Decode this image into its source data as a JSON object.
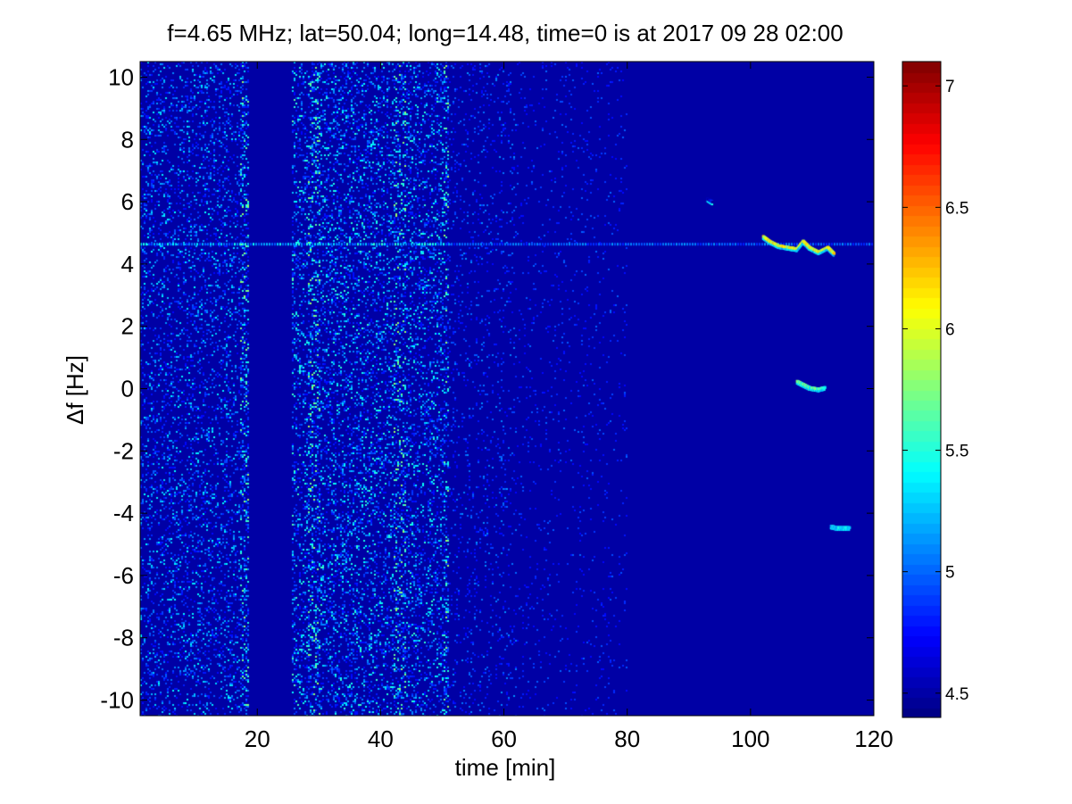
{
  "chart_data": {
    "type": "heatmap",
    "title": "f=4.65 MHz;  lat=50.04; long=14.48, time=0 is at 2017 09 28 02:00",
    "xlabel": "time [min]",
    "ylabel": "Δf [Hz]",
    "xlim": [
      1,
      120
    ],
    "ylim": [
      -10.5,
      10.5
    ],
    "x_ticks": [
      20,
      40,
      60,
      80,
      100,
      120
    ],
    "y_ticks": [
      -10,
      -8,
      -6,
      -4,
      -2,
      0,
      2,
      4,
      6,
      8,
      10
    ],
    "colormap": "jet",
    "colorbar": {
      "clim": [
        4.4,
        7.1
      ],
      "ticks": [
        4.5,
        5,
        5.5,
        6,
        6.5,
        7
      ],
      "labels": [
        "4.5",
        "5",
        "5.5",
        "6",
        "6.5",
        "7"
      ]
    },
    "background_value": 4.5,
    "noise_bands": [
      {
        "x_start": 1,
        "x_end": 17.5,
        "level": 0.55
      },
      {
        "x_start": 17,
        "x_end": 18.5,
        "level": 1.0
      },
      {
        "x_start": 18.5,
        "x_end": 25.5,
        "level": 0.0
      },
      {
        "x_start": 25.5,
        "x_end": 26,
        "level": 0.8
      },
      {
        "x_start": 26,
        "x_end": 51,
        "level": 0.7
      },
      {
        "x_start": 28,
        "x_end": 30,
        "level": 1.0
      },
      {
        "x_start": 42,
        "x_end": 44,
        "level": 1.0
      },
      {
        "x_start": 50,
        "x_end": 51,
        "level": 1.0
      },
      {
        "x_start": 51,
        "x_end": 62,
        "level": 0.25
      },
      {
        "x_start": 62,
        "x_end": 80,
        "level": 0.12
      }
    ],
    "carrier_line": {
      "y": 4.65,
      "x_start": 1,
      "x_end": 120
    },
    "signal_traces": [
      {
        "points": [
          [
            102.0,
            4.9
          ],
          [
            103.0,
            4.75
          ],
          [
            104.5,
            4.6
          ],
          [
            106.0,
            4.55
          ],
          [
            107.5,
            4.5
          ],
          [
            108.5,
            4.75
          ],
          [
            109.5,
            4.55
          ],
          [
            111.0,
            4.4
          ],
          [
            112.5,
            4.55
          ],
          [
            113.5,
            4.35
          ]
        ],
        "peak": 6.3
      },
      {
        "points": [
          [
            107.5,
            0.25
          ],
          [
            108.5,
            0.15
          ],
          [
            109.5,
            0.05
          ],
          [
            111.0,
            0.0
          ],
          [
            112.0,
            0.05
          ]
        ],
        "peak": 5.9
      },
      {
        "points": [
          [
            113.0,
            -4.4
          ],
          [
            114.0,
            -4.45
          ],
          [
            115.0,
            -4.45
          ],
          [
            116.0,
            -4.45
          ]
        ],
        "peak": 5.6
      },
      {
        "points": [
          [
            93.0,
            6.1
          ],
          [
            93.8,
            6.0
          ]
        ],
        "peak": 5.0
      }
    ]
  }
}
